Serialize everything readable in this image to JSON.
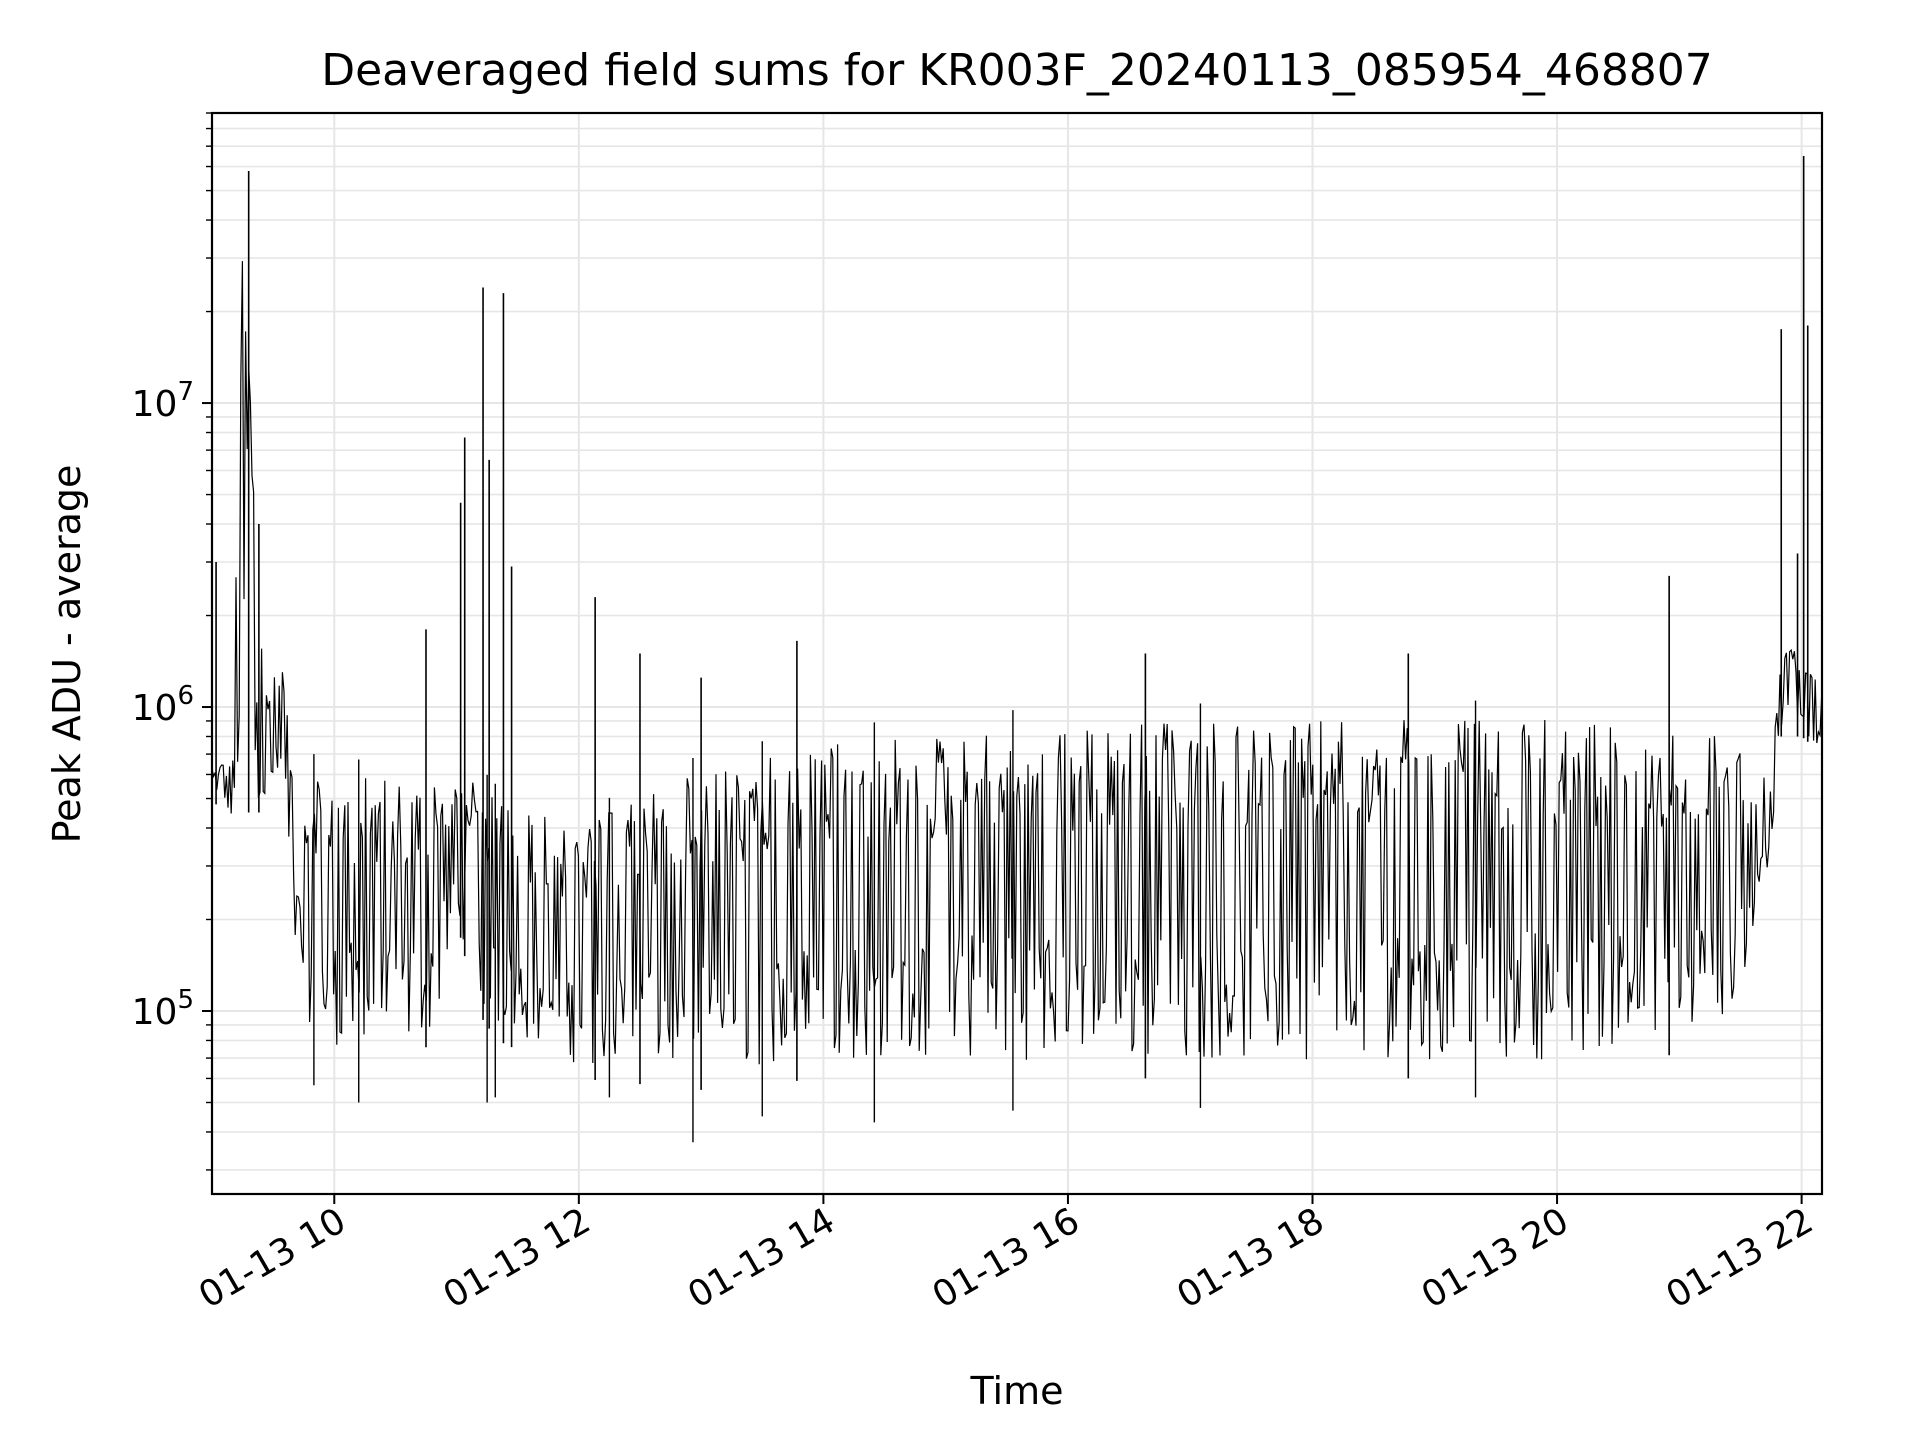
{
  "chart_data": {
    "type": "line",
    "title": "Deaveraged field sums for KR003F_20240113_085954_468807",
    "xlabel": "Time",
    "ylabel": "Peak ADU - average",
    "yscale": "log",
    "xlim": [
      "2024-01-13 09:00",
      "2024-01-13 22:10"
    ],
    "ylim": [
      25000,
      90000000
    ],
    "grid": true,
    "legend": "none",
    "line_color": "#000000",
    "grid_color": "#e6e6e6",
    "x_ticks": [
      {
        "t": "2024-01-13 10:00",
        "label": "01-13 10"
      },
      {
        "t": "2024-01-13 12:00",
        "label": "01-13 12"
      },
      {
        "t": "2024-01-13 14:00",
        "label": "01-13 14"
      },
      {
        "t": "2024-01-13 16:00",
        "label": "01-13 16"
      },
      {
        "t": "2024-01-13 18:00",
        "label": "01-13 18"
      },
      {
        "t": "2024-01-13 20:00",
        "label": "01-13 20"
      },
      {
        "t": "2024-01-13 22:00",
        "label": "01-13 22"
      }
    ],
    "y_ticks": [
      {
        "value": 100000,
        "base": "10",
        "exp": "5"
      },
      {
        "value": 1000000,
        "base": "10",
        "exp": "6"
      },
      {
        "value": 10000000,
        "base": "10",
        "exp": "7"
      }
    ],
    "series": [
      {
        "name": "",
        "envelope": [
          {
            "t": "2024-01-13 09:00",
            "low": 500000,
            "high": 650000
          },
          {
            "t": "2024-01-13 09:10",
            "low": 400000,
            "high": 700000
          },
          {
            "t": "2024-01-13 09:15",
            "low": 450000,
            "high": 55000000
          },
          {
            "t": "2024-01-13 09:25",
            "low": 450000,
            "high": 1300000
          },
          {
            "t": "2024-01-13 09:35",
            "low": 500000,
            "high": 1600000
          },
          {
            "t": "2024-01-13 09:40",
            "low": 150000,
            "high": 800000
          },
          {
            "t": "2024-01-13 09:50",
            "low": 70000,
            "high": 700000
          },
          {
            "t": "2024-01-13 10:30",
            "low": 65000,
            "high": 650000
          },
          {
            "t": "2024-01-13 10:50",
            "low": 80000,
            "high": 650000
          },
          {
            "t": "2024-01-13 11:00",
            "low": 200000,
            "high": 700000
          },
          {
            "t": "2024-01-13 11:10",
            "low": 100000,
            "high": 650000
          },
          {
            "t": "2024-01-13 11:20",
            "low": 80000,
            "high": 550000
          },
          {
            "t": "2024-01-13 12:00",
            "low": 60000,
            "high": 450000
          },
          {
            "t": "2024-01-13 13:00",
            "low": 55000,
            "high": 700000
          },
          {
            "t": "2024-01-13 14:00",
            "low": 60000,
            "high": 850000
          },
          {
            "t": "2024-01-13 15:00",
            "low": 60000,
            "high": 950000
          },
          {
            "t": "2024-01-13 16:00",
            "low": 60000,
            "high": 1000000
          },
          {
            "t": "2024-01-13 18:00",
            "low": 60000,
            "high": 1050000
          },
          {
            "t": "2024-01-13 20:00",
            "low": 60000,
            "high": 1050000
          },
          {
            "t": "2024-01-13 21:30",
            "low": 80000,
            "high": 900000
          },
          {
            "t": "2024-01-13 21:35",
            "low": 150000,
            "high": 700000
          },
          {
            "t": "2024-01-13 21:45",
            "low": 300000,
            "high": 600000
          },
          {
            "t": "2024-01-13 21:50",
            "low": 800000,
            "high": 2000000
          },
          {
            "t": "2024-01-13 22:00",
            "low": 800000,
            "high": 1500000
          },
          {
            "t": "2024-01-13 22:10",
            "low": 700000,
            "high": 1200000
          }
        ],
        "spikes": [
          {
            "t": "2024-01-13 09:02",
            "value": 3000000
          },
          {
            "t": "2024-01-13 09:18",
            "value": 58000000
          },
          {
            "t": "2024-01-13 09:23",
            "value": 4000000
          },
          {
            "t": "2024-01-13 10:45",
            "value": 1800000
          },
          {
            "t": "2024-01-13 11:02",
            "value": 4700000
          },
          {
            "t": "2024-01-13 11:04",
            "value": 7700000
          },
          {
            "t": "2024-01-13 11:13",
            "value": 24000000
          },
          {
            "t": "2024-01-13 11:16",
            "value": 6500000
          },
          {
            "t": "2024-01-13 11:23",
            "value": 23000000
          },
          {
            "t": "2024-01-13 11:27",
            "value": 2900000
          },
          {
            "t": "2024-01-13 12:08",
            "value": 2300000
          },
          {
            "t": "2024-01-13 12:30",
            "value": 1500000
          },
          {
            "t": "2024-01-13 13:00",
            "value": 1250000
          },
          {
            "t": "2024-01-13 13:47",
            "value": 1650000
          },
          {
            "t": "2024-01-13 16:38",
            "value": 1500000
          },
          {
            "t": "2024-01-13 18:47",
            "value": 1500000
          },
          {
            "t": "2024-01-13 20:55",
            "value": 2700000
          },
          {
            "t": "2024-01-13 21:50",
            "value": 17500000
          },
          {
            "t": "2024-01-13 21:58",
            "value": 3200000
          },
          {
            "t": "2024-01-13 22:01",
            "value": 65000000
          },
          {
            "t": "2024-01-13 22:03",
            "value": 18000000
          }
        ],
        "dips": [
          {
            "t": "2024-01-13 09:50",
            "value": 57000
          },
          {
            "t": "2024-01-13 10:12",
            "value": 50000
          },
          {
            "t": "2024-01-13 11:15",
            "value": 50000
          },
          {
            "t": "2024-01-13 11:19",
            "value": 52000
          },
          {
            "t": "2024-01-13 12:15",
            "value": 52000
          },
          {
            "t": "2024-01-13 12:56",
            "value": 37000
          },
          {
            "t": "2024-01-13 13:30",
            "value": 45000
          },
          {
            "t": "2024-01-13 14:25",
            "value": 43000
          },
          {
            "t": "2024-01-13 15:33",
            "value": 47000
          },
          {
            "t": "2024-01-13 17:05",
            "value": 48000
          },
          {
            "t": "2024-01-13 19:20",
            "value": 52000
          }
        ]
      }
    ]
  }
}
